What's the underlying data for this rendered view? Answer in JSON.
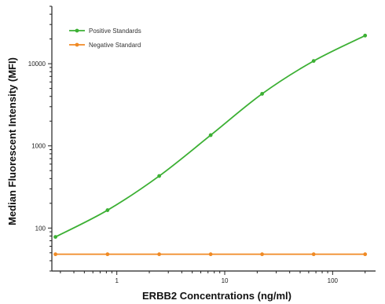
{
  "chart_data": {
    "type": "line",
    "xlabel": "ERBB2 Concentrations (ng/ml)",
    "ylabel": "Median Fluorescent Intensity (MFI)",
    "x_scale": "log",
    "y_scale": "log",
    "xlim": [
      0.25,
      250
    ],
    "ylim": [
      30,
      50000
    ],
    "x_ticks": [
      {
        "value": 1,
        "label": "1"
      },
      {
        "value": 10,
        "label": "10"
      },
      {
        "value": 100,
        "label": "100"
      }
    ],
    "y_ticks": [
      {
        "value": 100,
        "label": "100"
      },
      {
        "value": 1000,
        "label": "1000"
      },
      {
        "value": 10000,
        "label": "10000"
      }
    ],
    "grid": false,
    "legend_position": "top-left",
    "series": [
      {
        "name": "Positive Standards",
        "color": "#3cb034",
        "marker": "circle",
        "x": [
          0.27,
          0.82,
          2.47,
          7.41,
          22.2,
          66.7,
          200
        ],
        "y": [
          78,
          165,
          430,
          1350,
          4300,
          10800,
          22000
        ]
      },
      {
        "name": "Negative Standard",
        "color": "#f08a24",
        "marker": "circle",
        "x": [
          0.27,
          0.82,
          2.47,
          7.41,
          22.2,
          66.7,
          200
        ],
        "y": [
          48,
          48,
          48,
          48,
          48,
          48,
          48
        ]
      }
    ]
  }
}
